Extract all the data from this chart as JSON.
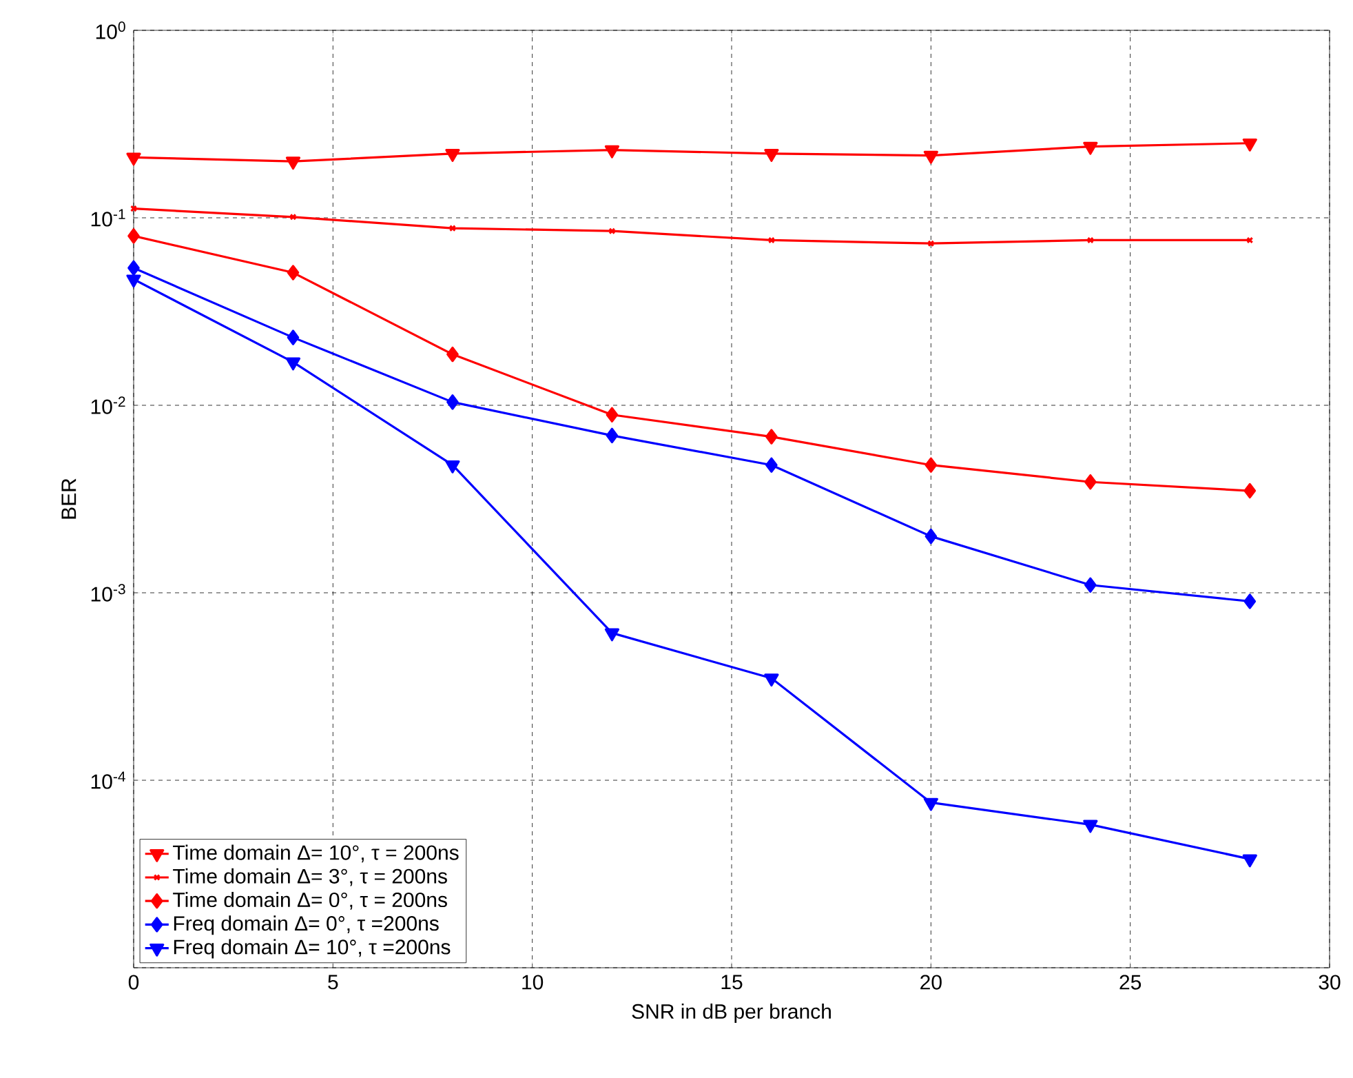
{
  "chart_data": {
    "type": "line",
    "xlabel": "SNR in dB per branch",
    "ylabel": "BER",
    "log": "y",
    "grid": true,
    "legend": "bottom left",
    "x": [
      0,
      4,
      8,
      12,
      16,
      20,
      24,
      28
    ],
    "xlim": [
      0,
      30
    ],
    "xticks": [
      0,
      5,
      10,
      15,
      20,
      25,
      30
    ],
    "ylim": [
      1e-05,
      1
    ],
    "yticks": [
      {
        "value": 1,
        "label": "10$^{0}$"
      },
      {
        "value": 0.1,
        "label": "10$^{-1}$"
      },
      {
        "value": 0.01,
        "label": "10$^{-2}$"
      },
      {
        "value": 0.001,
        "label": "10$^{-3}$"
      },
      {
        "value": 0.0001,
        "label": "10$^{-4}$"
      },
      {
        "value": 1e-05,
        "label": null
      }
    ],
    "series": [
      {
        "name": "Time domain Δ= 10°, τ = 200ns",
        "color": "#ff0000",
        "marker": "triangle",
        "values": [
          0.21,
          0.2,
          0.22,
          0.23,
          0.22,
          0.215,
          0.24,
          0.25
        ]
      },
      {
        "name": "Time domain Δ= 3°, τ = 200ns",
        "color": "#ff0000",
        "marker": "cross",
        "values": [
          0.112,
          0.101,
          0.088,
          0.085,
          0.076,
          0.073,
          0.076,
          0.076
        ]
      },
      {
        "name": "Time domain Δ= 0°, τ = 200ns",
        "color": "#ff0000",
        "marker": "diamond",
        "values": [
          0.08,
          0.051,
          0.0187,
          0.0089,
          0.0068,
          0.0048,
          0.0039,
          0.0035
        ]
      },
      {
        "name": "Freq domain Δ= 0°, τ =200ns",
        "color": "#0000ff",
        "marker": "diamond",
        "values": [
          0.054,
          0.023,
          0.0104,
          0.0069,
          0.0048,
          0.002,
          0.0011,
          0.0009
        ]
      },
      {
        "name": "Freq domain Δ= 10°, τ =200ns",
        "color": "#0000ff",
        "marker": "triangle",
        "values": [
          0.047,
          0.017,
          0.0048,
          0.00061,
          0.00035,
          7.6e-05,
          5.8e-05,
          3.8e-05
        ]
      }
    ]
  }
}
